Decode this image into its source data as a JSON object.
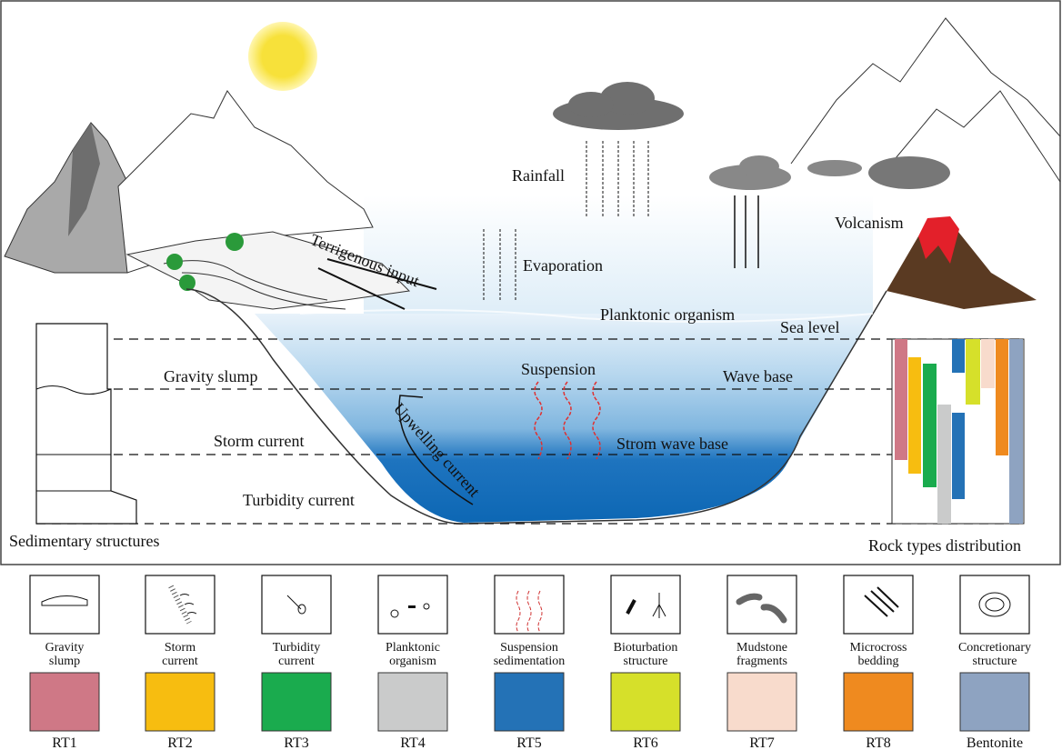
{
  "diagram": {
    "labels": {
      "rainfall": "Rainfall",
      "evaporation": "Evaporation",
      "terrigenous_input": "Terrigenous input",
      "volcanism": "Volcanism",
      "planktonic_organism": "Planktonic organism",
      "sea_level": "Sea level",
      "wave_base": "Wave base",
      "suspension": "Suspension",
      "strom_wave_base": "Strom wave base",
      "gravity_slump": "Gravity slump",
      "storm_current": "Storm current",
      "turbidity_current": "Turbidity current",
      "upwelling_current": "Upwelling current",
      "sedimentary_structures": "Sedimentary structures",
      "rock_types_distribution": "Rock types distribution"
    },
    "colors": {
      "sea_top": "#cfe6f5",
      "sea_mid": "#79b3de",
      "sea_deep": "#1a73bf",
      "sun": "#f7e13a",
      "lava": "#e3202a",
      "volcano": "#5a3a22",
      "cloud": "#707070"
    }
  },
  "legend": {
    "structures": [
      {
        "label1": "Gravity",
        "label2": "slump",
        "icon": "gravity-slump-icon"
      },
      {
        "label1": "Storm",
        "label2": "current",
        "icon": "storm-current-icon"
      },
      {
        "label1": "Turbidity",
        "label2": "current",
        "icon": "turbidity-current-icon"
      },
      {
        "label1": "Planktonic",
        "label2": "organism",
        "icon": "planktonic-organism-icon"
      },
      {
        "label1": "Suspension",
        "label2": "sedimentation",
        "icon": "suspension-sedimentation-icon"
      },
      {
        "label1": "Bioturbation",
        "label2": "structure",
        "icon": "bioturbation-icon"
      },
      {
        "label1": "Mudstone",
        "label2": "fragments",
        "icon": "mudstone-fragments-icon"
      },
      {
        "label1": "Microcross",
        "label2": "bedding",
        "icon": "microcross-bedding-icon"
      },
      {
        "label1": "Concretionary",
        "label2": "structure",
        "icon": "concretionary-icon"
      }
    ],
    "rock_types": [
      {
        "label": "RT1",
        "color": "#cf7886"
      },
      {
        "label": "RT2",
        "color": "#f7bd10"
      },
      {
        "label": "RT3",
        "color": "#1aab4e"
      },
      {
        "label": "RT4",
        "color": "#cacbcb"
      },
      {
        "label": "RT5",
        "color": "#2472b6"
      },
      {
        "label": "RT6",
        "color": "#d6e02a"
      },
      {
        "label": "RT7",
        "color": "#f8dbcc"
      },
      {
        "label": "RT8",
        "color": "#ef8a1f"
      },
      {
        "label": "Bentonite",
        "color": "#8ea3c1"
      }
    ]
  }
}
